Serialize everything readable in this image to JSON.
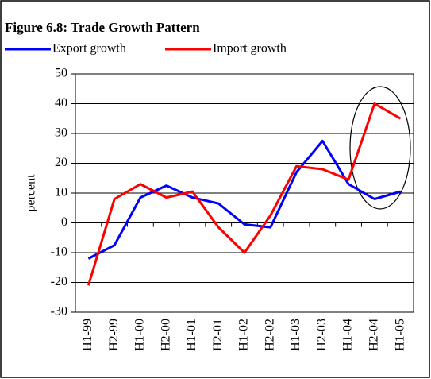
{
  "chart_data": {
    "type": "line",
    "title": "Figure 6.8: Trade Growth Pattern",
    "y_label": "percent",
    "categories": [
      "H1-99",
      "H2-99",
      "H1-00",
      "H2-00",
      "H1-01",
      "H2-01",
      "H1-02",
      "H2-02",
      "H1-03",
      "H2-03",
      "H1-04",
      "H2-04",
      "H1-05"
    ],
    "series": [
      {
        "name": "Export growth",
        "color": "#0000ff",
        "values": [
          -12,
          -7.5,
          8.5,
          12.5,
          8.5,
          6.5,
          -0.5,
          -1.5,
          17,
          27.5,
          13,
          8,
          10.5
        ]
      },
      {
        "name": "Import growth",
        "color": "#ff0000",
        "values": [
          -21,
          8,
          13,
          8.5,
          10.5,
          -1.5,
          -10,
          2.5,
          19,
          18,
          14.5,
          40,
          35
        ]
      }
    ],
    "ylim": [
      -30,
      50
    ],
    "yticks": [
      -30,
      -20,
      -10,
      0,
      10,
      20,
      30,
      40,
      50
    ],
    "grid": true
  }
}
